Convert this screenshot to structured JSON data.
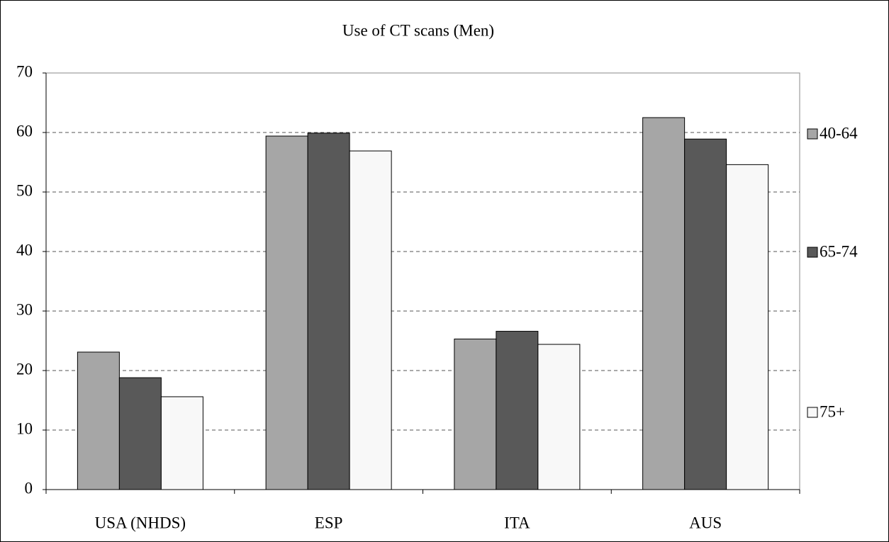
{
  "chart_data": {
    "type": "bar",
    "title": "Use of CT scans (Men)",
    "categories": [
      "USA (NHDS)",
      "ESP",
      "ITA",
      "AUS"
    ],
    "series": [
      {
        "name": "40-64",
        "color": "#a6a6a6",
        "values": [
          23.1,
          59.4,
          25.3,
          62.5
        ]
      },
      {
        "name": "65-74",
        "color": "#595959",
        "values": [
          18.8,
          59.9,
          26.6,
          58.9
        ]
      },
      {
        "name": "75+",
        "color": "#f8f8f8",
        "values": [
          15.6,
          56.9,
          24.4,
          54.6
        ]
      }
    ],
    "ylim": [
      0,
      70
    ],
    "yticks": [
      0,
      10,
      20,
      30,
      40,
      50,
      60,
      70
    ],
    "grid": true,
    "legend": "right"
  }
}
